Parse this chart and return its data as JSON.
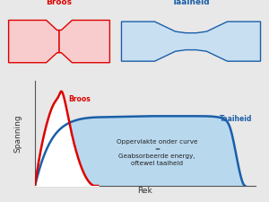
{
  "xlabel": "Rek",
  "ylabel": "Spanning",
  "brittle_label": "Broos",
  "ductile_label": "Taaiheid",
  "area_text": "Oppervlakte onder curve\n=\nGeabsorbeerde energy,\noftewel taaIheid",
  "brittle_color": "#dd0000",
  "ductile_color": "#1a5fa8",
  "ductile_fill": "#b8d8ee",
  "brittle_fill": "#ffffff",
  "background": "#e8e8e8",
  "fig_bg": "#e8e8e8"
}
